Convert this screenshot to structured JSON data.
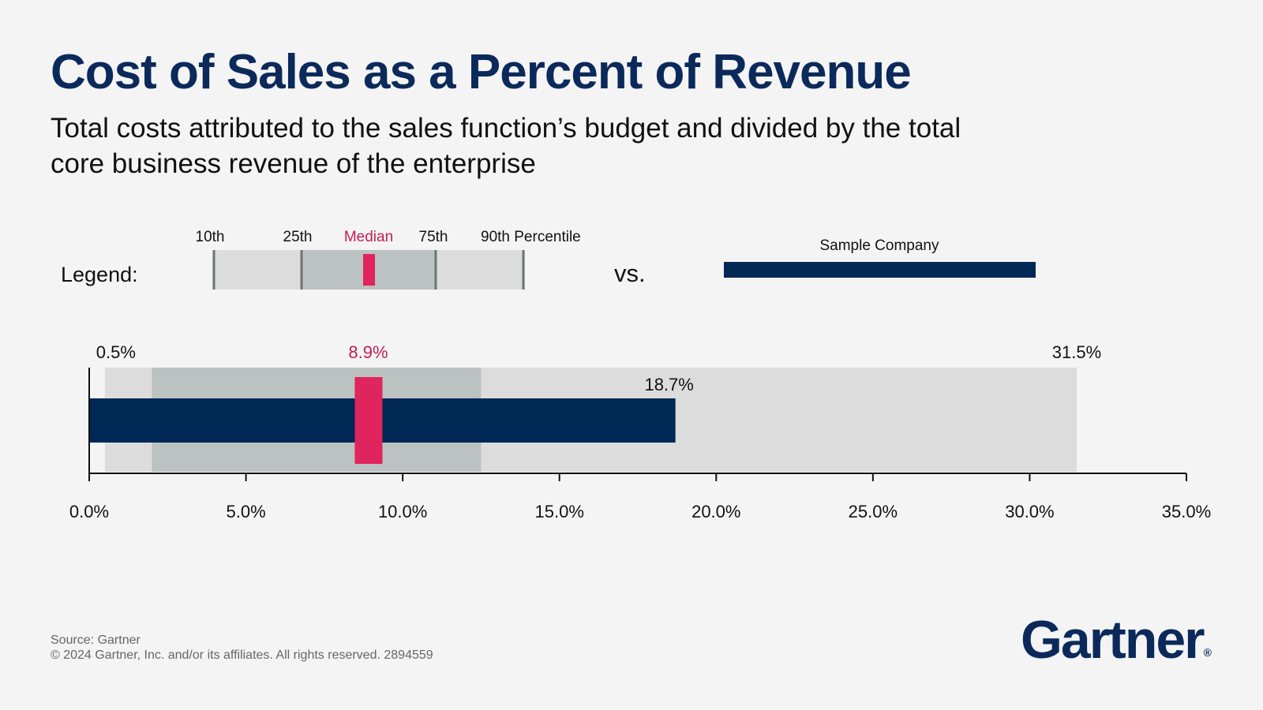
{
  "header": {
    "title": "Cost of Sales as a Percent of Revenue",
    "subtitle": "Total costs attributed to the sales function’s budget and divided by the total core business revenue of the enterprise"
  },
  "legend": {
    "label": "Legend:",
    "vs": "vs.",
    "p10": "10th",
    "p25": "25th",
    "median": "Median",
    "p75": "75th",
    "p90": "90th Percentile",
    "sample": "Sample Company"
  },
  "chart_data": {
    "type": "bar",
    "subtype": "bullet-percentile",
    "xlim": [
      0,
      35
    ],
    "ticks": [
      0,
      5,
      10,
      15,
      20,
      25,
      30,
      35
    ],
    "tick_labels": [
      "0.0%",
      "5.0%",
      "10.0%",
      "15.0%",
      "20.0%",
      "25.0%",
      "30.0%",
      "35.0%"
    ],
    "percentiles": {
      "p10": 0.5,
      "p25": 2.0,
      "median": 8.9,
      "p75": 12.5,
      "p90": 31.5
    },
    "sample_company": 18.7,
    "data_labels": {
      "p10": "0.5%",
      "median": "8.9%",
      "p90": "31.5%",
      "sample": "18.7%"
    },
    "colors": {
      "outer_range": "#dcdcdc",
      "inner_range": "#bcc1c1",
      "median": "#e0245e",
      "median_label": "#c41e53",
      "sample": "#002855",
      "title": "#0b2a5b"
    }
  },
  "footer": {
    "source": "Source: Gartner",
    "copyright": "© 2024 Gartner, Inc. and/or its affiliates. All rights reserved. 2894559"
  },
  "logo": {
    "text": "Gartner",
    "mark": "®"
  }
}
